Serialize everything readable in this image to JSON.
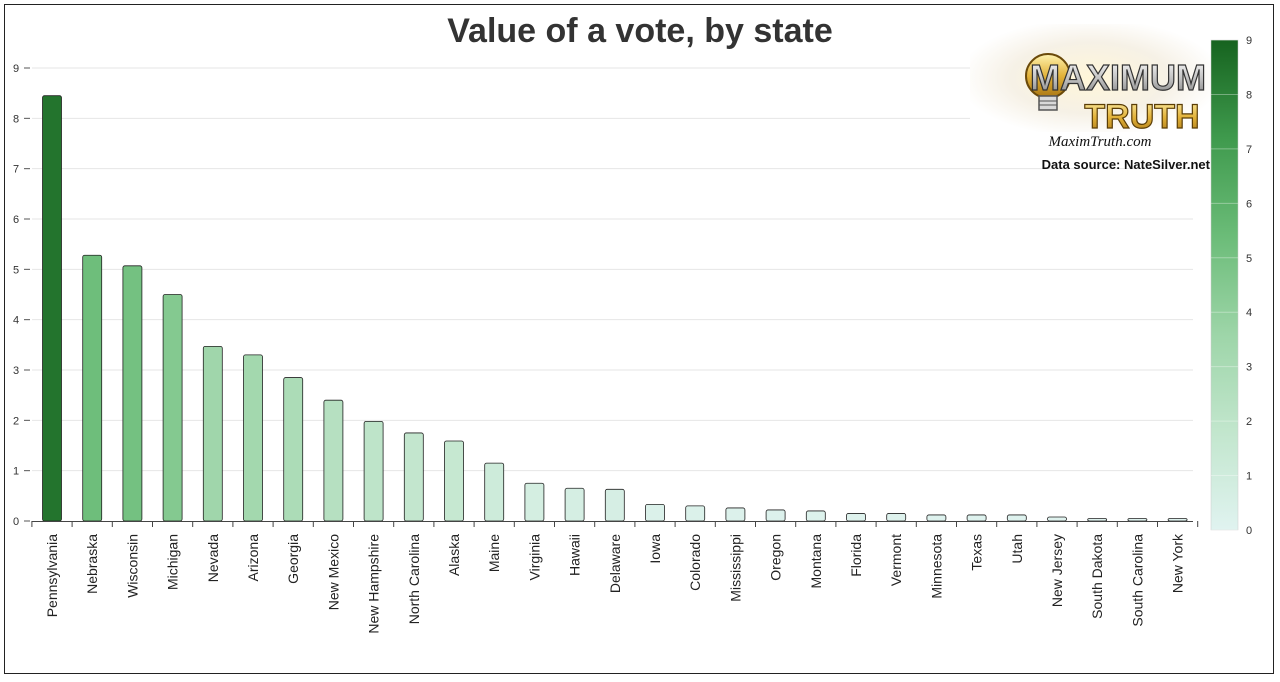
{
  "chart_data": {
    "type": "bar",
    "title": "Value of a vote, by state",
    "xlabel": "",
    "ylabel": "",
    "ylim": [
      0,
      9
    ],
    "y_ticks": [
      "0",
      "1",
      "2",
      "3",
      "4",
      "5",
      "6",
      "7",
      "8",
      "9"
    ],
    "grid": true,
    "categories": [
      "Pennsylvania",
      "Nebraska",
      "Wisconsin",
      "Michigan",
      "Nevada",
      "Arizona",
      "Georgia",
      "New Mexico",
      "New Hampshire",
      "North Carolina",
      "Alaska",
      "Maine",
      "Virginia",
      "Hawaii",
      "Delaware",
      "Iowa",
      "Colorado",
      "Mississippi",
      "Oregon",
      "Montana",
      "Florida",
      "Vermont",
      "Minnesota",
      "Texas",
      "Utah",
      "New Jersey",
      "South Dakota",
      "South Carolina",
      "New York"
    ],
    "values": [
      8.45,
      5.28,
      5.07,
      4.5,
      3.47,
      3.3,
      2.85,
      2.4,
      1.98,
      1.75,
      1.59,
      1.15,
      0.75,
      0.65,
      0.63,
      0.33,
      0.3,
      0.26,
      0.22,
      0.2,
      0.15,
      0.15,
      0.12,
      0.12,
      0.12,
      0.08,
      0.05,
      0.05,
      0.05
    ],
    "colorscale": {
      "range": [
        0,
        9
      ],
      "ticks": [
        "0",
        "1",
        "2",
        "3",
        "4",
        "5",
        "6",
        "7",
        "8",
        "9"
      ],
      "stops": [
        "#e0f3f0",
        "#c2e6cd",
        "#9dd5a8",
        "#6bbc78",
        "#3f9a4d",
        "#16631f"
      ],
      "placement": "right"
    },
    "bar_edge_color": "#222222"
  },
  "branding": {
    "logo_line1": "MAXIMUM",
    "logo_line2": "TRUTH",
    "site": "MaximTruth.com",
    "source": "Data source: NateSilver.net"
  }
}
